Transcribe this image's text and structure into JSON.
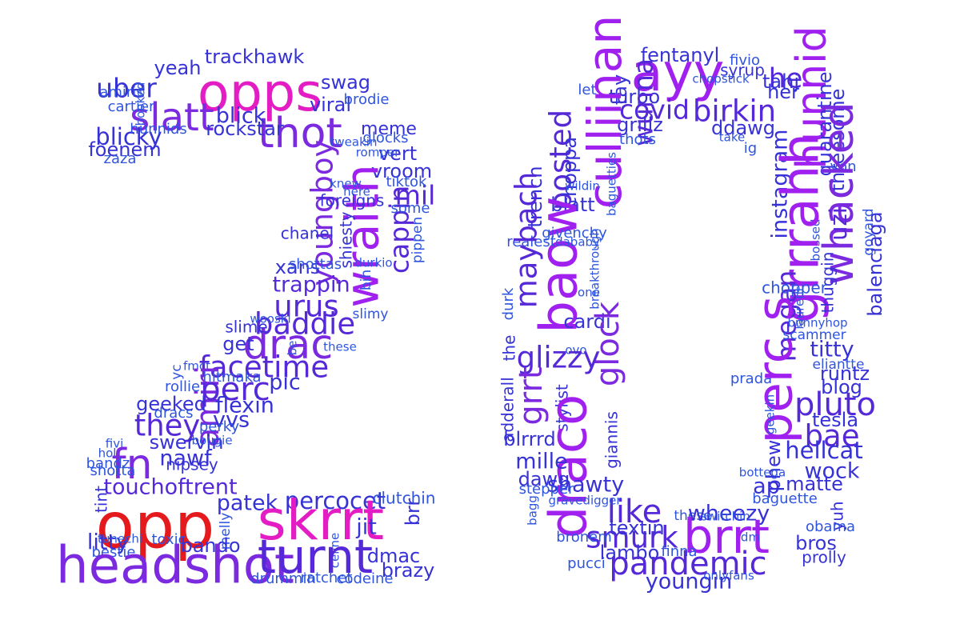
{
  "palette": {
    "red": "#e41a1c",
    "magenta": "#e31cc3",
    "pink": "#cc23cf",
    "purple": "#a020f0",
    "violet": "#7b2ae0",
    "indigo": "#5528d8",
    "blue": "#3632d6",
    "sky": "#2f55e0"
  },
  "words": [
    {
      "text": "opps",
      "weight": 0.8,
      "color": "magenta"
    },
    {
      "text": "slatt",
      "weight": 0.55,
      "color": "violet"
    },
    {
      "text": "thot",
      "weight": 0.62,
      "color": "violet"
    },
    {
      "text": "uber",
      "weight": 0.34,
      "color": "blue"
    },
    {
      "text": "trackhawk",
      "weight": 0.22,
      "color": "blue"
    },
    {
      "text": "yeah",
      "weight": 0.22,
      "color": "blue"
    },
    {
      "text": "amiris",
      "weight": 0.13,
      "color": "sky"
    },
    {
      "text": "cartier",
      "weight": 0.13,
      "color": "sky"
    },
    {
      "text": "booked",
      "weight": 0.08,
      "color": "sky",
      "rot": true
    },
    {
      "text": "blicky",
      "weight": 0.28,
      "color": "blue"
    },
    {
      "text": "foenem",
      "weight": 0.22,
      "color": "blue"
    },
    {
      "text": "zaza",
      "weight": 0.13,
      "color": "sky"
    },
    {
      "text": "hunnids",
      "weight": 0.13,
      "color": "sky"
    },
    {
      "text": "swag",
      "weight": 0.22,
      "color": "blue"
    },
    {
      "text": "viral",
      "weight": 0.22,
      "color": "blue"
    },
    {
      "text": "blick",
      "weight": 0.26,
      "color": "blue"
    },
    {
      "text": "rockstar",
      "weight": 0.22,
      "color": "blue"
    },
    {
      "text": "brodie",
      "weight": 0.13,
      "color": "sky"
    },
    {
      "text": "meme",
      "weight": 0.18,
      "color": "blue"
    },
    {
      "text": "glocks",
      "weight": 0.13,
      "color": "sky"
    },
    {
      "text": "tweakin",
      "weight": 0.08,
      "color": "sky"
    },
    {
      "text": "vert",
      "weight": 0.22,
      "color": "blue"
    },
    {
      "text": "vroom",
      "weight": 0.22,
      "color": "blue"
    },
    {
      "text": "romper",
      "weight": 0.08,
      "color": "sky"
    },
    {
      "text": "mil",
      "weight": 0.34,
      "color": "indigo"
    },
    {
      "text": "youngboy",
      "weight": 0.4,
      "color": "violet",
      "rot": true
    },
    {
      "text": "wraith",
      "weight": 0.68,
      "color": "purple",
      "rot": true
    },
    {
      "text": "cappin",
      "weight": 0.34,
      "color": "indigo",
      "rot": true
    },
    {
      "text": "tiktok",
      "weight": 0.13,
      "color": "sky"
    },
    {
      "text": "knew",
      "weight": 0.08,
      "color": "sky"
    },
    {
      "text": "here",
      "weight": 0.08,
      "color": "sky"
    },
    {
      "text": "some",
      "weight": 0.13,
      "color": "sky"
    },
    {
      "text": "foreigns",
      "weight": 0.16,
      "color": "blue"
    },
    {
      "text": "pippen",
      "weight": 0.11,
      "color": "sky",
      "rot": true
    },
    {
      "text": "durkio",
      "weight": 0.08,
      "color": "sky"
    },
    {
      "text": "shiesty",
      "weight": 0.16,
      "color": "blue",
      "rot": true
    },
    {
      "text": "chanel",
      "weight": 0.16,
      "color": "blue"
    },
    {
      "text": "xans",
      "weight": 0.22,
      "color": "blue"
    },
    {
      "text": "shottas",
      "weight": 0.13,
      "color": "sky"
    },
    {
      "text": "bih",
      "weight": 0.11,
      "color": "sky",
      "rot": true
    },
    {
      "text": "trappin",
      "weight": 0.26,
      "color": "indigo"
    },
    {
      "text": "urus",
      "weight": 0.4,
      "color": "indigo"
    },
    {
      "text": "slimy",
      "weight": 0.11,
      "color": "sky"
    },
    {
      "text": "baddie",
      "weight": 0.4,
      "color": "indigo"
    },
    {
      "text": "drac",
      "weight": 0.6,
      "color": "violet"
    },
    {
      "text": "wooski",
      "weight": 0.08,
      "color": "sky"
    },
    {
      "text": "slime",
      "weight": 0.16,
      "color": "blue"
    },
    {
      "text": "get",
      "weight": 0.22,
      "color": "blue"
    },
    {
      "text": "be",
      "weight": 0.08,
      "color": "sky",
      "rot": true
    },
    {
      "text": "these",
      "weight": 0.08,
      "color": "sky"
    },
    {
      "text": "facetime",
      "weight": 0.4,
      "color": "indigo"
    },
    {
      "text": "yc",
      "weight": 0.11,
      "color": "sky",
      "rot": true
    },
    {
      "text": "fmct",
      "weight": 0.08,
      "color": "sky"
    },
    {
      "text": "amiri",
      "weight": 0.44,
      "color": "violet",
      "rot": true
    },
    {
      "text": "hitmaka",
      "weight": 0.13,
      "color": "sky"
    },
    {
      "text": "pic",
      "weight": 0.26,
      "color": "blue"
    },
    {
      "text": "perc",
      "weight": 0.44,
      "color": "indigo"
    },
    {
      "text": "rollie",
      "weight": 0.13,
      "color": "sky"
    },
    {
      "text": "flexin",
      "weight": 0.26,
      "color": "blue"
    },
    {
      "text": "geeked",
      "weight": 0.22,
      "color": "blue"
    },
    {
      "text": "they",
      "weight": 0.4,
      "color": "indigo"
    },
    {
      "text": "dracs",
      "weight": 0.13,
      "color": "sky"
    },
    {
      "text": "vvs",
      "weight": 0.26,
      "color": "blue"
    },
    {
      "text": "perky",
      "weight": 0.13,
      "color": "sky"
    },
    {
      "text": "swervin",
      "weight": 0.22,
      "color": "blue"
    },
    {
      "text": "bougie",
      "weight": 0.08,
      "color": "sky"
    },
    {
      "text": "fivi",
      "weight": 0.08,
      "color": "sky"
    },
    {
      "text": "fn",
      "weight": 0.62,
      "color": "violet"
    },
    {
      "text": "nawf",
      "weight": 0.26,
      "color": "blue"
    },
    {
      "text": "hol",
      "weight": 0.08,
      "color": "sky"
    },
    {
      "text": "bandz",
      "weight": 0.13,
      "color": "sky"
    },
    {
      "text": "nipsey",
      "weight": 0.16,
      "color": "blue"
    },
    {
      "text": "shotta",
      "weight": 0.13,
      "color": "sky"
    },
    {
      "text": "touchoftrent",
      "weight": 0.26,
      "color": "indigo"
    },
    {
      "text": "patek",
      "weight": 0.26,
      "color": "blue"
    },
    {
      "text": "percocet",
      "weight": 0.28,
      "color": "blue"
    },
    {
      "text": "clutchin",
      "weight": 0.16,
      "color": "sky"
    },
    {
      "text": "tint",
      "weight": 0.16,
      "color": "blue",
      "rot": true
    },
    {
      "text": "opp",
      "weight": 1.0,
      "color": "red"
    },
    {
      "text": "skrrt",
      "weight": 0.85,
      "color": "magenta"
    },
    {
      "text": "jit",
      "weight": 0.26,
      "color": "blue"
    },
    {
      "text": "brr",
      "weight": 0.22,
      "color": "blue",
      "rot": true
    },
    {
      "text": "litty",
      "weight": 0.26,
      "color": "blue"
    },
    {
      "text": "tunechi",
      "weight": 0.08,
      "color": "sky"
    },
    {
      "text": "toxic",
      "weight": 0.13,
      "color": "sky"
    },
    {
      "text": "melly",
      "weight": 0.11,
      "color": "sky",
      "rot": true
    },
    {
      "text": "bando",
      "weight": 0.22,
      "color": "blue"
    },
    {
      "text": "celine",
      "weight": 0.08,
      "color": "sky",
      "rot": true
    },
    {
      "text": "bestie",
      "weight": 0.13,
      "color": "sky"
    },
    {
      "text": "headshot",
      "weight": 0.78,
      "color": "violet"
    },
    {
      "text": "turnt",
      "weight": 0.72,
      "color": "indigo"
    },
    {
      "text": "dmac",
      "weight": 0.22,
      "color": "blue"
    },
    {
      "text": "brazy",
      "weight": 0.22,
      "color": "blue"
    },
    {
      "text": "drummin",
      "weight": 0.13,
      "color": "sky"
    },
    {
      "text": "ratchet",
      "weight": 0.13,
      "color": "sky"
    },
    {
      "text": "codeine",
      "weight": 0.13,
      "color": "sky"
    },
    {
      "text": "fentanyl",
      "weight": 0.22,
      "color": "blue"
    },
    {
      "text": "ayy",
      "weight": 0.8,
      "color": "purple"
    },
    {
      "text": "fivio",
      "weight": 0.13,
      "color": "sky"
    },
    {
      "text": "syrup",
      "weight": 0.16,
      "color": "blue"
    },
    {
      "text": "chopstick",
      "weight": 0.08,
      "color": "sky"
    },
    {
      "text": "let",
      "weight": 0.13,
      "color": "sky"
    },
    {
      "text": "tay",
      "weight": 0.22,
      "color": "blue",
      "rot": true
    },
    {
      "text": "turbo",
      "weight": 0.22,
      "color": "blue"
    },
    {
      "text": "covid",
      "weight": 0.34,
      "color": "indigo"
    },
    {
      "text": "birkin",
      "weight": 0.4,
      "color": "indigo"
    },
    {
      "text": "he",
      "weight": 0.36,
      "color": "indigo"
    },
    {
      "text": "tahj",
      "weight": 0.22,
      "color": "blue"
    },
    {
      "text": "her",
      "weight": 0.22,
      "color": "blue"
    },
    {
      "text": "hunnid",
      "weight": 0.62,
      "color": "purple",
      "rot": true
    },
    {
      "text": "ddawg",
      "weight": 0.22,
      "color": "blue"
    },
    {
      "text": "grillz",
      "weight": 0.22,
      "color": "blue"
    },
    {
      "text": "wunna",
      "weight": 0.34,
      "color": "indigo",
      "rot": true
    },
    {
      "text": "thots",
      "weight": 0.13,
      "color": "sky"
    },
    {
      "text": "take",
      "weight": 0.08,
      "color": "sky"
    },
    {
      "text": "ig",
      "weight": 0.13,
      "color": "sky"
    },
    {
      "text": "culliinan",
      "weight": 0.7,
      "color": "purple",
      "rot": true
    },
    {
      "text": "posted",
      "weight": 0.4,
      "color": "indigo",
      "rot": true
    },
    {
      "text": "choppa",
      "weight": 0.22,
      "color": "blue",
      "rot": true
    },
    {
      "text": "quarantine",
      "weight": 0.22,
      "color": "blue",
      "rot": true
    },
    {
      "text": "threesome",
      "weight": 0.22,
      "color": "blue",
      "rot": true
    },
    {
      "text": "von",
      "weight": 0.13,
      "color": "sky"
    },
    {
      "text": "instagram",
      "weight": 0.26,
      "color": "blue",
      "rot": true
    },
    {
      "text": "whacked",
      "weight": 0.62,
      "color": "violet",
      "rot": true
    },
    {
      "text": "trench",
      "weight": 0.22,
      "color": "blue",
      "rot": true
    },
    {
      "text": "wildin",
      "weight": 0.08,
      "color": "sky"
    },
    {
      "text": "baguetties",
      "weight": 0.08,
      "color": "sky",
      "rot": true
    },
    {
      "text": "blatt",
      "weight": 0.22,
      "color": "blue"
    },
    {
      "text": "uzi",
      "weight": 0.28,
      "color": "indigo",
      "rot": true
    },
    {
      "text": "goyard",
      "weight": 0.11,
      "color": "sky",
      "rot": true
    },
    {
      "text": "baow",
      "weight": 0.78,
      "color": "purple",
      "rot": true
    },
    {
      "text": "realest",
      "weight": 0.13,
      "color": "sky"
    },
    {
      "text": "givenchy",
      "weight": 0.13,
      "color": "sky"
    },
    {
      "text": "bossed",
      "weight": 0.08,
      "color": "sky",
      "rot": true
    },
    {
      "text": "maybach",
      "weight": 0.4,
      "color": "indigo",
      "rot": true
    },
    {
      "text": "dababy",
      "weight": 0.08,
      "color": "sky"
    },
    {
      "text": "grrrahh",
      "weight": 0.78,
      "color": "purple",
      "rot": true
    },
    {
      "text": "balenciaga",
      "weight": 0.22,
      "color": "blue",
      "rot": true
    },
    {
      "text": "megan",
      "weight": 0.34,
      "color": "indigo",
      "rot": true
    },
    {
      "text": "thuggin",
      "weight": 0.16,
      "color": "blue",
      "rot": true
    },
    {
      "text": "chopper",
      "weight": 0.16,
      "color": "sky"
    },
    {
      "text": "breakthrough",
      "weight": 0.08,
      "color": "sky",
      "rot": true
    },
    {
      "text": "one",
      "weight": 0.08,
      "color": "sky"
    },
    {
      "text": "durk",
      "weight": 0.13,
      "color": "sky",
      "rot": true
    },
    {
      "text": "laurent",
      "weight": 0.08,
      "color": "sky",
      "rot": true
    },
    {
      "text": "bunnyhop",
      "weight": 0.08,
      "color": "sky"
    },
    {
      "text": "cardi",
      "weight": 0.22,
      "color": "blue"
    },
    {
      "text": "glock",
      "weight": 0.44,
      "color": "violet",
      "rot": true
    },
    {
      "text": "scammer",
      "weight": 0.11,
      "color": "sky"
    },
    {
      "text": "titty",
      "weight": 0.26,
      "color": "blue"
    },
    {
      "text": "the",
      "weight": 0.16,
      "color": "blue",
      "rot": true
    },
    {
      "text": "ovo",
      "weight": 0.08,
      "color": "sky"
    },
    {
      "text": "eliantte",
      "weight": 0.11,
      "color": "sky"
    },
    {
      "text": "glizzy",
      "weight": 0.4,
      "color": "indigo"
    },
    {
      "text": "grrt",
      "weight": 0.44,
      "color": "violet",
      "rot": true
    },
    {
      "text": "runtz",
      "weight": 0.22,
      "color": "blue"
    },
    {
      "text": "prada",
      "weight": 0.13,
      "color": "sky"
    },
    {
      "text": "blog",
      "weight": 0.22,
      "color": "blue"
    },
    {
      "text": "adderall",
      "weight": 0.16,
      "color": "blue",
      "rot": true
    },
    {
      "text": "stylist",
      "weight": 0.16,
      "color": "blue",
      "rot": true
    },
    {
      "text": "draco",
      "weight": 0.78,
      "color": "purple",
      "rot": true
    },
    {
      "text": "perc s",
      "weight": 0.74,
      "color": "purple",
      "rot": true
    },
    {
      "text": "geekin",
      "weight": 0.08,
      "color": "sky",
      "rot": true
    },
    {
      "text": "pluto",
      "weight": 0.44,
      "color": "indigo"
    },
    {
      "text": "tesla",
      "weight": 0.22,
      "color": "blue"
    },
    {
      "text": "giannis",
      "weight": 0.16,
      "color": "blue",
      "rot": true
    },
    {
      "text": "blrrrd",
      "weight": 0.22,
      "color": "blue"
    },
    {
      "text": "bae",
      "weight": 0.4,
      "color": "indigo"
    },
    {
      "text": "phew",
      "weight": 0.22,
      "color": "blue",
      "rot": true
    },
    {
      "text": "hellcat",
      "weight": 0.28,
      "color": "blue"
    },
    {
      "text": "mille",
      "weight": 0.26,
      "color": "blue"
    },
    {
      "text": "wock",
      "weight": 0.26,
      "color": "blue"
    },
    {
      "text": "bottega",
      "weight": 0.08,
      "color": "sky"
    },
    {
      "text": "dawg",
      "weight": 0.22,
      "color": "blue"
    },
    {
      "text": "ap",
      "weight": 0.26,
      "color": "blue"
    },
    {
      "text": "matte",
      "weight": 0.22,
      "color": "blue"
    },
    {
      "text": "shawty",
      "weight": 0.26,
      "color": "blue"
    },
    {
      "text": "stepper",
      "weight": 0.13,
      "color": "sky"
    },
    {
      "text": "like",
      "weight": 0.44,
      "color": "indigo"
    },
    {
      "text": "baguette",
      "weight": 0.13,
      "color": "sky"
    },
    {
      "text": "bagg",
      "weight": 0.08,
      "color": "sky",
      "rot": true
    },
    {
      "text": "gravedigger",
      "weight": 0.08,
      "color": "sky"
    },
    {
      "text": "these",
      "weight": 0.11,
      "color": "sky"
    },
    {
      "text": "wheezy",
      "weight": 0.26,
      "color": "blue"
    },
    {
      "text": "yuh",
      "weight": 0.16,
      "color": "blue",
      "rot": true
    },
    {
      "text": "smurk",
      "weight": 0.4,
      "color": "indigo"
    },
    {
      "text": "brrt",
      "weight": 0.72,
      "color": "purple"
    },
    {
      "text": "obama",
      "weight": 0.13,
      "color": "sky"
    },
    {
      "text": "textin",
      "weight": 0.22,
      "color": "blue"
    },
    {
      "text": "switchin",
      "weight": 0.08,
      "color": "sky"
    },
    {
      "text": "bronem",
      "weight": 0.13,
      "color": "sky"
    },
    {
      "text": "lambo",
      "weight": 0.22,
      "color": "blue"
    },
    {
      "text": "finna",
      "weight": 0.13,
      "color": "sky"
    },
    {
      "text": "dm",
      "weight": 0.08,
      "color": "sky"
    },
    {
      "text": "bros",
      "weight": 0.22,
      "color": "blue"
    },
    {
      "text": "pucci",
      "weight": 0.13,
      "color": "sky"
    },
    {
      "text": "pandemic",
      "weight": 0.44,
      "color": "indigo"
    },
    {
      "text": "prolly",
      "weight": 0.16,
      "color": "blue"
    },
    {
      "text": "youngin",
      "weight": 0.26,
      "color": "blue"
    },
    {
      "text": "onlyfans",
      "weight": 0.08,
      "color": "sky"
    }
  ]
}
